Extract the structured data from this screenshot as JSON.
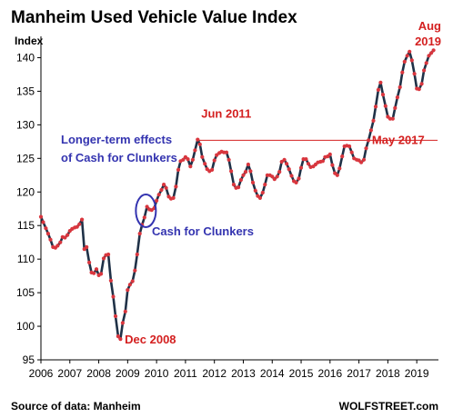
{
  "chart_data": {
    "type": "line",
    "title": "Manheim Used Vehicle Value Index",
    "ylabel": "Index",
    "xlabel": "",
    "ylim": [
      95,
      142.5
    ],
    "yticks": [
      95,
      100,
      105,
      110,
      115,
      120,
      125,
      130,
      135,
      140
    ],
    "xlim": [
      2006.0,
      2019.75
    ],
    "xticks": [
      "2006",
      "2007",
      "2008",
      "2009",
      "2010",
      "2011",
      "2012",
      "2013",
      "2014",
      "2015",
      "2016",
      "2017",
      "2018",
      "2019"
    ],
    "grid": false,
    "legend": "none",
    "line_color": "#1f3147",
    "marker_color": "#d9363e",
    "annotation_red_color": "#d42020",
    "annotation_blue_color": "#3434b0",
    "reference_line": {
      "value": 127.7,
      "from_label": "Jun 2011",
      "to_label": "May 2017"
    },
    "annotations": {
      "jun_2011": "Jun 2011",
      "may_2017": "May 2017",
      "dec_2008": "Dec 2008",
      "aug_2019_line1": "Aug",
      "aug_2019_line2": "2019",
      "longer_term_line1": "Longer-term effects",
      "longer_term_line2": "of Cash for Clunkers",
      "cash_for_clunkers": "Cash for Clunkers"
    },
    "source": "Source of data: Manheim",
    "credit": "WOLFSTREET.com",
    "series": [
      {
        "values": [
          [
            2006.0,
            116.3
          ],
          [
            2006.08,
            115.5
          ],
          [
            2006.17,
            114.6
          ],
          [
            2006.25,
            113.8
          ],
          [
            2006.33,
            112.9
          ],
          [
            2006.42,
            111.8
          ],
          [
            2006.5,
            111.7
          ],
          [
            2006.58,
            112.0
          ],
          [
            2006.67,
            112.5
          ],
          [
            2006.75,
            113.3
          ],
          [
            2006.83,
            113.2
          ],
          [
            2006.92,
            113.6
          ],
          [
            2007.0,
            114.2
          ],
          [
            2007.08,
            114.5
          ],
          [
            2007.17,
            114.7
          ],
          [
            2007.25,
            114.8
          ],
          [
            2007.33,
            115.2
          ],
          [
            2007.42,
            115.9
          ],
          [
            2007.5,
            111.5
          ],
          [
            2007.58,
            111.8
          ],
          [
            2007.67,
            109.5
          ],
          [
            2007.75,
            108.0
          ],
          [
            2007.83,
            107.9
          ],
          [
            2007.92,
            108.5
          ],
          [
            2008.0,
            107.6
          ],
          [
            2008.08,
            107.8
          ],
          [
            2008.17,
            110.1
          ],
          [
            2008.25,
            110.6
          ],
          [
            2008.33,
            110.7
          ],
          [
            2008.42,
            106.8
          ],
          [
            2008.5,
            104.4
          ],
          [
            2008.58,
            101.5
          ],
          [
            2008.67,
            98.5
          ],
          [
            2008.75,
            98.1
          ],
          [
            2008.83,
            100.5
          ],
          [
            2008.92,
            102.2
          ],
          [
            2009.0,
            105.4
          ],
          [
            2009.08,
            106.2
          ],
          [
            2009.17,
            106.7
          ],
          [
            2009.25,
            108.3
          ],
          [
            2009.33,
            110.7
          ],
          [
            2009.42,
            113.8
          ],
          [
            2009.5,
            115.1
          ],
          [
            2009.58,
            116.2
          ],
          [
            2009.67,
            117.8
          ],
          [
            2009.75,
            117.4
          ],
          [
            2009.83,
            117.3
          ],
          [
            2009.92,
            117.6
          ],
          [
            2010.0,
            118.7
          ],
          [
            2010.08,
            119.6
          ],
          [
            2010.17,
            120.3
          ],
          [
            2010.25,
            121.1
          ],
          [
            2010.33,
            120.6
          ],
          [
            2010.42,
            119.3
          ],
          [
            2010.5,
            119.0
          ],
          [
            2010.58,
            119.1
          ],
          [
            2010.67,
            120.8
          ],
          [
            2010.75,
            123.3
          ],
          [
            2010.83,
            124.6
          ],
          [
            2010.92,
            124.8
          ],
          [
            2011.0,
            125.2
          ],
          [
            2011.08,
            124.9
          ],
          [
            2011.17,
            123.8
          ],
          [
            2011.25,
            124.8
          ],
          [
            2011.33,
            126.2
          ],
          [
            2011.42,
            127.8
          ],
          [
            2011.5,
            127.1
          ],
          [
            2011.58,
            125.2
          ],
          [
            2011.67,
            124.2
          ],
          [
            2011.75,
            123.4
          ],
          [
            2011.83,
            123.1
          ],
          [
            2011.92,
            123.3
          ],
          [
            2012.0,
            124.7
          ],
          [
            2012.08,
            125.5
          ],
          [
            2012.17,
            125.8
          ],
          [
            2012.25,
            126.0
          ],
          [
            2012.33,
            125.9
          ],
          [
            2012.42,
            125.9
          ],
          [
            2012.5,
            124.8
          ],
          [
            2012.58,
            123.1
          ],
          [
            2012.67,
            121.1
          ],
          [
            2012.75,
            120.6
          ],
          [
            2012.83,
            120.7
          ],
          [
            2012.92,
            121.8
          ],
          [
            2013.0,
            122.5
          ],
          [
            2013.08,
            123.0
          ],
          [
            2013.17,
            124.1
          ],
          [
            2013.25,
            123.1
          ],
          [
            2013.33,
            121.4
          ],
          [
            2013.42,
            120.2
          ],
          [
            2013.5,
            119.4
          ],
          [
            2013.58,
            119.1
          ],
          [
            2013.67,
            119.9
          ],
          [
            2013.75,
            121.1
          ],
          [
            2013.83,
            122.5
          ],
          [
            2013.92,
            122.5
          ],
          [
            2014.0,
            122.3
          ],
          [
            2014.08,
            121.9
          ],
          [
            2014.17,
            122.3
          ],
          [
            2014.25,
            123.0
          ],
          [
            2014.33,
            124.5
          ],
          [
            2014.42,
            124.8
          ],
          [
            2014.5,
            124.2
          ],
          [
            2014.58,
            123.4
          ],
          [
            2014.67,
            122.4
          ],
          [
            2014.75,
            121.6
          ],
          [
            2014.83,
            121.4
          ],
          [
            2014.92,
            122.0
          ],
          [
            2015.0,
            123.6
          ],
          [
            2015.08,
            124.9
          ],
          [
            2015.17,
            124.9
          ],
          [
            2015.25,
            124.2
          ],
          [
            2015.33,
            123.7
          ],
          [
            2015.42,
            123.8
          ],
          [
            2015.5,
            124.1
          ],
          [
            2015.58,
            124.4
          ],
          [
            2015.67,
            124.5
          ],
          [
            2015.75,
            124.6
          ],
          [
            2015.83,
            125.2
          ],
          [
            2015.92,
            125.3
          ],
          [
            2016.0,
            125.6
          ],
          [
            2016.08,
            124.0
          ],
          [
            2016.17,
            122.8
          ],
          [
            2016.25,
            122.5
          ],
          [
            2016.33,
            123.5
          ],
          [
            2016.42,
            125.3
          ],
          [
            2016.5,
            126.8
          ],
          [
            2016.58,
            126.9
          ],
          [
            2016.67,
            126.8
          ],
          [
            2016.75,
            125.9
          ],
          [
            2016.83,
            125.0
          ],
          [
            2016.92,
            124.8
          ],
          [
            2017.0,
            124.7
          ],
          [
            2017.08,
            124.4
          ],
          [
            2017.17,
            124.8
          ],
          [
            2017.25,
            126.5
          ],
          [
            2017.33,
            127.7
          ],
          [
            2017.42,
            129.2
          ],
          [
            2017.5,
            130.6
          ],
          [
            2017.58,
            132.7
          ],
          [
            2017.67,
            135.2
          ],
          [
            2017.75,
            136.3
          ],
          [
            2017.83,
            134.5
          ],
          [
            2017.92,
            132.8
          ],
          [
            2018.0,
            131.2
          ],
          [
            2018.08,
            130.9
          ],
          [
            2018.17,
            130.9
          ],
          [
            2018.25,
            132.5
          ],
          [
            2018.33,
            134.1
          ],
          [
            2018.42,
            135.6
          ],
          [
            2018.5,
            137.8
          ],
          [
            2018.58,
            139.4
          ],
          [
            2018.67,
            140.3
          ],
          [
            2018.75,
            140.9
          ],
          [
            2018.83,
            139.6
          ],
          [
            2018.92,
            137.6
          ],
          [
            2019.0,
            135.4
          ],
          [
            2019.08,
            135.3
          ],
          [
            2019.17,
            136.1
          ],
          [
            2019.25,
            138.1
          ],
          [
            2019.33,
            139.2
          ],
          [
            2019.42,
            140.3
          ],
          [
            2019.5,
            140.7
          ],
          [
            2019.58,
            141.1
          ]
        ]
      }
    ]
  }
}
